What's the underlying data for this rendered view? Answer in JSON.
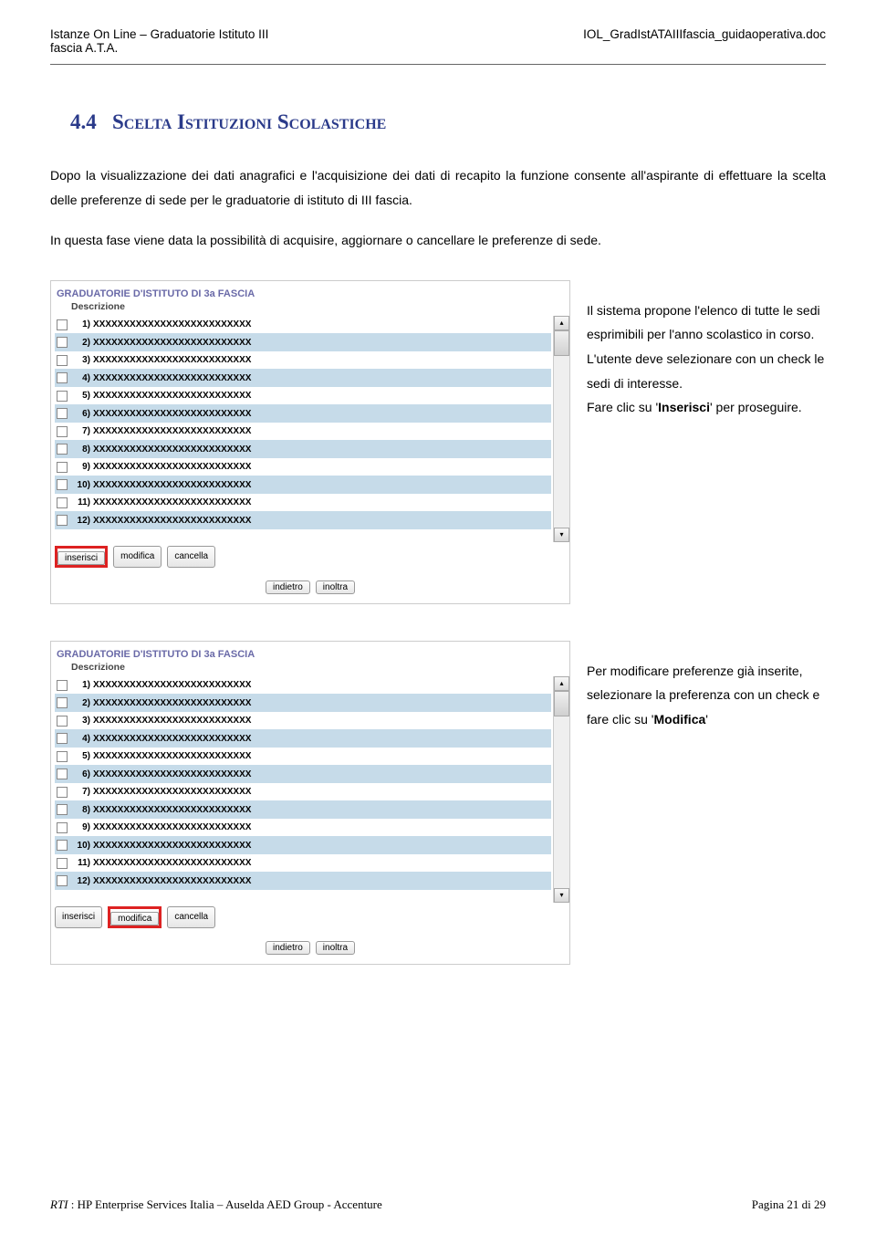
{
  "header": {
    "left_line1": "Istanze On Line – Graduatorie Istituto III",
    "left_line2": "fascia A.T.A.",
    "right": "IOL_GradIstATAIIIfascia_guidaoperativa.doc"
  },
  "heading": {
    "number": "4.4",
    "title_sc": "Scelta Istituzioni Scolastiche"
  },
  "para1": "Dopo la visualizzazione dei dati anagrafici e l'acquisizione dei dati di recapito la funzione consente all'aspirante di effettuare la scelta delle preferenze di sede per le graduatorie di istituto di III fascia.",
  "para2": "In questa fase viene data la possibilità di acquisire, aggiornare o cancellare le preferenze di sede.",
  "panel": {
    "title": "GRADUATORIE D'ISTITUTO DI 3a FASCIA",
    "subtitle": "Descrizione",
    "row_text": "XXXXXXXXXXXXXXXXXXXXXXXXXX",
    "btn_inserisci": "inserisci",
    "btn_modifica": "modifica",
    "btn_cancella": "cancella",
    "btn_indietro": "indietro",
    "btn_inoltra": "inoltra",
    "scroll_up": "▴",
    "scroll_down": "▾",
    "row_count": 12,
    "alt_bg": "#c6dbe9",
    "highlight_color": "#d22"
  },
  "side1_p1": "Il sistema propone l'elenco di tutte le sedi esprimibili per l'anno scolastico in corso. L'utente deve selezionare con un check le sedi di interesse.",
  "side1_p2a": "Fare clic su '",
  "side1_p2b": "Inserisci",
  "side1_p2c": "' per proseguire.",
  "side2_p1a": "Per modificare preferenze già inserite, selezionare la preferenza con un check e fare clic su '",
  "side2_p1b": "Modifica",
  "side2_p1c": "'",
  "footer": {
    "rti": "RTI",
    "authors": " : HP Enterprise Services Italia – Auselda AED Group - Accenture",
    "page_prefix": "Pagina ",
    "page_cur": "21",
    "page_mid": " di ",
    "page_tot": "29"
  }
}
